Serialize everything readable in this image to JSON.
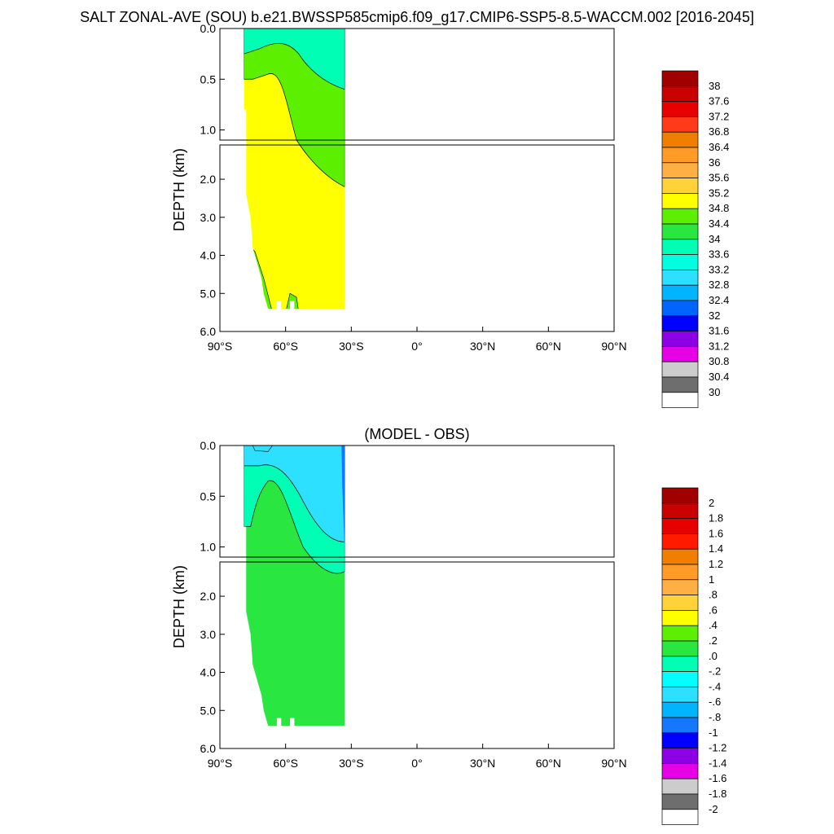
{
  "page": {
    "title": "SALT ZONAL-AVE (SOU) b.e21.BWSSP585cmip6.f09_g17.CMIP6-SSP5-8.5-WACCM.002 [2016-2045]"
  },
  "chart_data": [
    {
      "type": "heatmap",
      "panel": "top",
      "title": "",
      "ylabel": "DEPTH (km)",
      "xlabel": "",
      "xlim": [
        -90,
        90
      ],
      "ylim": [
        0,
        6
      ],
      "x_ticks": [
        "90°S",
        "60°S",
        "30°S",
        "0°",
        "30°N",
        "60°N",
        "90°N"
      ],
      "y_ticks_upper": [
        "0.0",
        "0.5",
        "1.0"
      ],
      "y_ticks_lower": [
        "2.0",
        "3.0",
        "4.0",
        "5.0",
        "6.0"
      ],
      "data_extent": {
        "lat_min": -79,
        "lat_max": -33,
        "max_depth_km": 5.4
      },
      "regions": [
        {
          "name": "upper-cyan",
          "value": 33.8
        },
        {
          "name": "mid-green",
          "value": 34.6
        },
        {
          "name": "deep-yellow",
          "value": 35.0
        }
      ],
      "colorbar": {
        "labels": [
          "38",
          "37.6",
          "37.2",
          "36.8",
          "36.4",
          "36",
          "35.6",
          "35.2",
          "34.8",
          "34.4",
          "34",
          "33.6",
          "33.2",
          "32.8",
          "32.4",
          "32",
          "31.6",
          "31.2",
          "30.8",
          "30.4",
          "30"
        ],
        "colors": [
          "#a00000",
          "#c80000",
          "#e60000",
          "#ff3a1a",
          "#f07e00",
          "#ff9b26",
          "#ffb042",
          "#ffd23a",
          "#ffff00",
          "#5cf000",
          "#29e640",
          "#00ffb4",
          "#00ffe0",
          "#2ee0ff",
          "#00b4ff",
          "#0064ff",
          "#0000ff",
          "#8c00e6",
          "#e600e6",
          "#cccccc",
          "#6e6e6e",
          "#ffffff"
        ]
      }
    },
    {
      "type": "heatmap",
      "panel": "bottom",
      "title": "(MODEL - OBS)",
      "ylabel": "DEPTH (km)",
      "xlabel": "",
      "xlim": [
        -90,
        90
      ],
      "ylim": [
        0,
        6
      ],
      "x_ticks": [
        "90°S",
        "60°S",
        "30°S",
        "0°",
        "30°N",
        "60°N",
        "90°N"
      ],
      "y_ticks_upper": [
        "0.0",
        "0.5",
        "1.0"
      ],
      "y_ticks_lower": [
        "2.0",
        "3.0",
        "4.0",
        "5.0",
        "6.0"
      ],
      "data_extent": {
        "lat_min": -79,
        "lat_max": -33,
        "max_depth_km": 5.4
      },
      "regions": [
        {
          "name": "surface-blue",
          "value": -0.5
        },
        {
          "name": "upper-cyan",
          "value": -0.2
        },
        {
          "name": "bulk-green",
          "value": 0.1
        }
      ],
      "colorbar": {
        "labels": [
          "2",
          "1.8",
          "1.6",
          "1.4",
          "1.2",
          "1",
          ".8",
          ".6",
          ".4",
          ".2",
          ".0",
          "-.2",
          "-.4",
          "-.6",
          "-.8",
          "-1",
          "-1.2",
          "-1.4",
          "-1.6",
          "-1.8",
          "-2"
        ],
        "colors": [
          "#a00000",
          "#c80000",
          "#e60000",
          "#ff1a00",
          "#f07e00",
          "#ff9b26",
          "#ffb042",
          "#ffd23a",
          "#ffff00",
          "#5cf000",
          "#29e640",
          "#00ffb4",
          "#00ffff",
          "#2ee0ff",
          "#00b4ff",
          "#1478ff",
          "#0000ff",
          "#8c00e6",
          "#e600e6",
          "#cccccc",
          "#6e6e6e",
          "#ffffff"
        ]
      }
    }
  ]
}
